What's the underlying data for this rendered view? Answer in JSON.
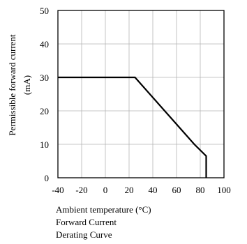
{
  "chart_data": {
    "type": "line",
    "xlabel": "Ambient temperature (°C)",
    "ylabel_line1": "Permissible forward current",
    "ylabel_line2": "(mA)",
    "caption_line1": "Forward Current",
    "caption_line2": "Derating  Curve",
    "xlim": [
      -40,
      100
    ],
    "ylim": [
      0,
      50
    ],
    "x_ticks": [
      -40,
      -20,
      0,
      20,
      40,
      60,
      80,
      100
    ],
    "y_ticks": [
      0,
      10,
      20,
      30,
      40,
      50
    ],
    "grid": true,
    "series": [
      {
        "x": [
          -40,
          25,
          75,
          85,
          85
        ],
        "y": [
          30,
          30,
          10,
          6.5,
          0
        ],
        "color": "#000000"
      }
    ]
  }
}
